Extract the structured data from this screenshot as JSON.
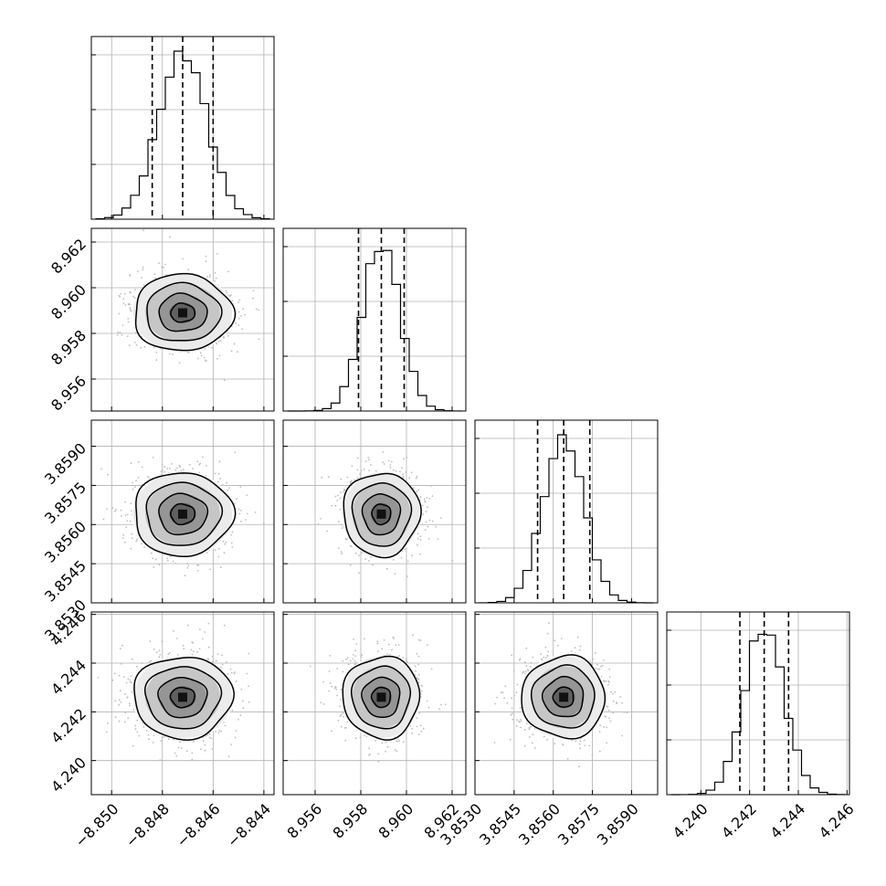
{
  "chart_data": {
    "type": "corner",
    "grid": true,
    "parameters": [
      {
        "range": [
          -8.8508,
          -8.8436
        ],
        "ticks": [
          -8.85,
          -8.848,
          -8.846,
          -8.844
        ],
        "tick_labels": [
          "−8.850",
          "−8.848",
          "−8.846",
          "−8.844"
        ],
        "quantiles": [
          -8.8484,
          -8.8472,
          -8.846
        ],
        "mean": -8.8472,
        "sd": 0.00095,
        "hist_ticks": [
          0.0,
          0.3,
          0.6,
          0.9
        ]
      },
      {
        "range": [
          8.9546,
          8.9626
        ],
        "ticks": [
          8.956,
          8.958,
          8.96,
          8.962
        ],
        "tick_labels": [
          "8.956",
          "8.958",
          "8.960",
          "8.962"
        ],
        "quantiles": [
          8.9579,
          8.9589,
          8.9599
        ],
        "mean": 8.9589,
        "sd": 0.00082,
        "hist_ticks": [
          0.0,
          0.3,
          0.6,
          0.9
        ]
      },
      {
        "range": [
          3.853,
          3.86
        ],
        "ticks": [
          3.853,
          3.8545,
          3.856,
          3.8575,
          3.859
        ],
        "tick_labels": [
          "3.8530",
          "3.8545",
          "3.8560",
          "3.8575",
          "3.8590"
        ],
        "quantiles": [
          3.8554,
          3.8564,
          3.8574
        ],
        "mean": 3.8564,
        "sd": 0.00078,
        "hist_ticks": [
          0.0,
          0.3,
          0.6,
          0.9
        ]
      },
      {
        "range": [
          4.2386,
          4.2461
        ],
        "ticks": [
          4.24,
          4.242,
          4.244,
          4.246
        ],
        "tick_labels": [
          "4.240",
          "4.242",
          "4.244",
          "4.246"
        ],
        "quantiles": [
          4.2416,
          4.2426,
          4.2436
        ],
        "mean": 4.2426,
        "sd": 0.00082,
        "hist_ticks": [
          0.0,
          0.3,
          0.6,
          0.9
        ]
      }
    ]
  }
}
